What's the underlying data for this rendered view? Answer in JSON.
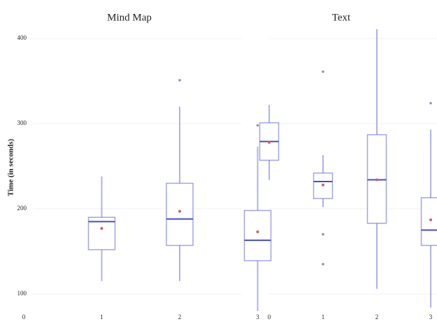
{
  "chart_data": [
    {
      "type": "box",
      "title": "Mind Map",
      "y_label": "Time (in seconds)",
      "categories": [
        "0",
        "1",
        "2",
        "3"
      ],
      "boxes": [
        null,
        {
          "min": 115,
          "q1": 152,
          "median": 185,
          "q3": 190,
          "max": 238,
          "mean": 177,
          "outliers": []
        },
        {
          "min": 115,
          "q1": 157,
          "median": 188,
          "q3": 230,
          "max": 320,
          "mean": 197,
          "outliers": [
            351
          ]
        },
        {
          "min": 80,
          "q1": 139,
          "median": 163,
          "q3": 198,
          "max": 273,
          "mean": 173,
          "outliers": [
            298
          ]
        }
      ],
      "color": "#7c7ce0",
      "median_color": "#4a4ac8",
      "mean_color": "#d06060",
      "ylim": [
        68,
        437
      ],
      "yticks": [
        100,
        200,
        300,
        400
      ],
      "grid": true
    },
    {
      "type": "box",
      "title": "Text",
      "categories": [
        "0",
        "1",
        "2",
        "3"
      ],
      "boxes": [
        {
          "min": 234,
          "q1": 257,
          "median": 279,
          "q3": 301,
          "max": 322,
          "mean": 278,
          "outliers": []
        },
        {
          "min": 202,
          "q1": 212,
          "median": 232,
          "q3": 242,
          "max": 263,
          "mean": 228,
          "outliers": [
            361,
            170,
            135
          ]
        },
        {
          "min": 106,
          "q1": 183,
          "median": 234,
          "q3": 287,
          "max": 411,
          "mean": 234,
          "outliers": []
        },
        {
          "min": 84,
          "q1": 157,
          "median": 175,
          "q3": 213,
          "max": 293,
          "mean": 187,
          "outliers": [
            324
          ]
        }
      ],
      "color": "#7c7ce0",
      "median_color": "#4a4ac8",
      "mean_color": "#d06060",
      "ylim": [
        68,
        437
      ],
      "yticks": [
        100,
        200,
        300,
        400
      ],
      "grid": true
    }
  ]
}
